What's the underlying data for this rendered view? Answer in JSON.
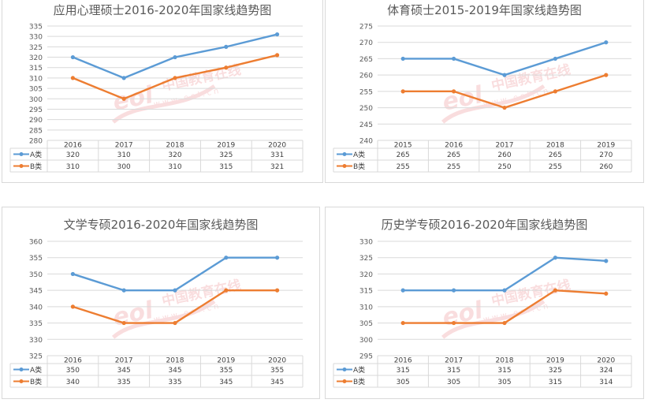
{
  "chart_data": [
    {
      "type": "line",
      "title": "应用心理硕士2016-2020年国家线趋势图",
      "categories": [
        "2016",
        "2017",
        "2018",
        "2019",
        "2020"
      ],
      "series": [
        {
          "name": "A类",
          "values": [
            320,
            310,
            320,
            325,
            331
          ]
        },
        {
          "name": "B类",
          "values": [
            310,
            300,
            310,
            315,
            321
          ]
        }
      ],
      "ylim": [
        280,
        335
      ],
      "ystep": 5,
      "grid": true,
      "legend": "data-table-bottom"
    },
    {
      "type": "line",
      "title": "体育硕士2015-2019年国家线趋势图",
      "categories": [
        "2015",
        "2016",
        "2017",
        "2018",
        "2019"
      ],
      "series": [
        {
          "name": "A类",
          "values": [
            265,
            265,
            260,
            265,
            270
          ]
        },
        {
          "name": "B类",
          "values": [
            255,
            255,
            250,
            255,
            260
          ]
        }
      ],
      "ylim": [
        240,
        275
      ],
      "ystep": 5,
      "grid": true,
      "legend": "data-table-bottom"
    },
    {
      "type": "line",
      "title": "文学专硕2016-2020年国家线趋势图",
      "categories": [
        "2016",
        "2017",
        "2018",
        "2019",
        "2020"
      ],
      "series": [
        {
          "name": "A类",
          "values": [
            350,
            345,
            345,
            355,
            355
          ]
        },
        {
          "name": "B类",
          "values": [
            340,
            335,
            335,
            345,
            345
          ]
        }
      ],
      "ylim": [
        325,
        360
      ],
      "ystep": 5,
      "grid": true,
      "legend": "data-table-bottom"
    },
    {
      "type": "line",
      "title": "历史学专硕2016-2020年国家线趋势图",
      "categories": [
        "2016",
        "2017",
        "2018",
        "2019",
        "2020"
      ],
      "series": [
        {
          "name": "A类",
          "values": [
            315,
            315,
            315,
            325,
            324
          ]
        },
        {
          "name": "B类",
          "values": [
            305,
            305,
            305,
            315,
            314
          ]
        }
      ],
      "ylim": [
        295,
        330
      ],
      "ystep": 5,
      "grid": true,
      "legend": "data-table-bottom"
    }
  ],
  "colors": {
    "A类": "#5b9bd5",
    "B类": "#ed7d31"
  },
  "watermark": {
    "text_cn": "中国教育在线",
    "text_url": "www.eol.cn",
    "logo": "eol"
  }
}
